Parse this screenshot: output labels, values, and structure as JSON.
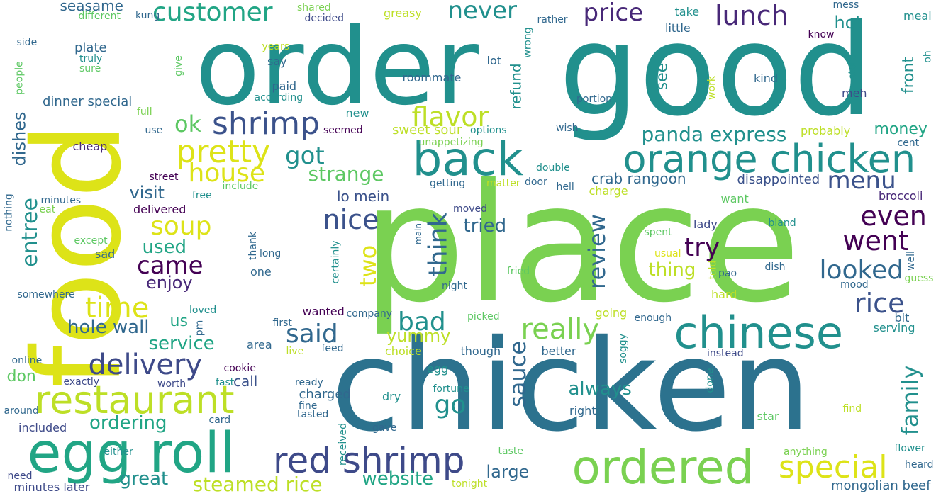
{
  "palette": {
    "dark_purple": "#440154",
    "indigo": "#3b528b",
    "blue": "#2c728e",
    "teal": "#21908d",
    "green": "#5dc863",
    "lime": "#7ad151",
    "yellow": "#dde318"
  },
  "words": [
    {
      "text": "place",
      "fs": 230,
      "color": "#7ad151"
    },
    {
      "text": "chicken",
      "fs": 178,
      "color": "#2c728e"
    },
    {
      "text": "good",
      "fs": 178,
      "color": "#21908d"
    },
    {
      "text": "order",
      "fs": 150,
      "color": "#21908d"
    },
    {
      "text": "food",
      "fs": 170,
      "color": "#dde318"
    },
    {
      "text": "egg roll",
      "fs": 78,
      "color": "#21a585"
    },
    {
      "text": "ordered",
      "fs": 66,
      "color": "#7ad151"
    },
    {
      "text": "back",
      "fs": 66,
      "color": "#21908d"
    },
    {
      "text": "chinese",
      "fs": 62,
      "color": "#21908d"
    },
    {
      "text": "orange chicken",
      "fs": 54,
      "color": "#21908d"
    },
    {
      "text": "restaurant",
      "fs": 54,
      "color": "#bddf26"
    },
    {
      "text": "red shrimp",
      "fs": 50,
      "color": "#3e4a89"
    },
    {
      "text": "special",
      "fs": 44,
      "color": "#dde318"
    },
    {
      "text": "pretty",
      "fs": 44,
      "color": "#dde318"
    },
    {
      "text": "shrimp",
      "fs": 44,
      "color": "#3b528b"
    },
    {
      "text": "really",
      "fs": 40,
      "color": "#7ad151"
    },
    {
      "text": "time",
      "fs": 40,
      "color": "#dde318"
    },
    {
      "text": "delivery",
      "fs": 40,
      "color": "#3e4a89"
    },
    {
      "text": "customer",
      "fs": 36,
      "color": "#21a585"
    },
    {
      "text": "flavor",
      "fs": 38,
      "color": "#bddf26"
    },
    {
      "text": "lunch",
      "fs": 38,
      "color": "#482878"
    },
    {
      "text": "even",
      "fs": 38,
      "color": "#440154"
    },
    {
      "text": "went",
      "fs": 38,
      "color": "#440154"
    },
    {
      "text": "looked",
      "fs": 36,
      "color": "#31688e"
    },
    {
      "text": "rice",
      "fs": 38,
      "color": "#3b528b"
    },
    {
      "text": "nice",
      "fs": 38,
      "color": "#3b528b"
    },
    {
      "text": "price",
      "fs": 34,
      "color": "#482878"
    },
    {
      "text": "never",
      "fs": 34,
      "color": "#21908d"
    },
    {
      "text": "house",
      "fs": 36,
      "color": "#dde318"
    },
    {
      "text": "soup",
      "fs": 36,
      "color": "#dde318"
    },
    {
      "text": "came",
      "fs": 34,
      "color": "#440154"
    },
    {
      "text": "try",
      "fs": 36,
      "color": "#440154"
    },
    {
      "text": "said",
      "fs": 36,
      "color": "#31688e"
    },
    {
      "text": "bad",
      "fs": 36,
      "color": "#21908d"
    },
    {
      "text": "go",
      "fs": 36,
      "color": "#21908d"
    },
    {
      "text": "menu",
      "fs": 34,
      "color": "#3b528b"
    },
    {
      "text": "got",
      "fs": 34,
      "color": "#21908d"
    },
    {
      "text": "ok",
      "fs": 32,
      "color": "#5dc863"
    },
    {
      "text": "panda express",
      "fs": 28,
      "color": "#21908d"
    },
    {
      "text": "strange",
      "fs": 28,
      "color": "#5dc863"
    },
    {
      "text": "always",
      "fs": 26,
      "color": "#21908d"
    },
    {
      "text": "hole wall",
      "fs": 26,
      "color": "#31688e"
    },
    {
      "text": "great",
      "fs": 26,
      "color": "#21908d"
    },
    {
      "text": "steamed rice",
      "fs": 28,
      "color": "#bddf26"
    },
    {
      "text": "website",
      "fs": 26,
      "color": "#21a585"
    },
    {
      "text": "large",
      "fs": 24,
      "color": "#31688e"
    },
    {
      "text": "enjoy",
      "fs": 24,
      "color": "#482878"
    },
    {
      "text": "used",
      "fs": 26,
      "color": "#21a585"
    },
    {
      "text": "visit",
      "fs": 24,
      "color": "#31688e"
    },
    {
      "text": "tried",
      "fs": 26,
      "color": "#31688e"
    },
    {
      "text": "service",
      "fs": 26,
      "color": "#21a585"
    },
    {
      "text": "yummy",
      "fs": 24,
      "color": "#bddf26"
    },
    {
      "text": "ordering",
      "fs": 26,
      "color": "#21a585"
    },
    {
      "text": "thing",
      "fs": 26,
      "color": "#bddf26"
    },
    {
      "text": "mongolian beef",
      "fs": 18,
      "color": "#31688e"
    },
    {
      "text": "money",
      "fs": 22,
      "color": "#21a585"
    },
    {
      "text": "hot",
      "fs": 24,
      "color": "#21908d"
    },
    {
      "text": "seasame",
      "fs": 20,
      "color": "#31688e"
    },
    {
      "text": "us",
      "fs": 22,
      "color": "#21a585"
    },
    {
      "text": "don",
      "fs": 22,
      "color": "#5dc863"
    },
    {
      "text": "crab rangoon",
      "fs": 20,
      "color": "#31688e"
    },
    {
      "text": "disappointed",
      "fs": 18,
      "color": "#3b528b"
    },
    {
      "text": "lo mein",
      "fs": 20,
      "color": "#3b528b"
    },
    {
      "text": "sweet sour",
      "fs": 18,
      "color": "#bddf26"
    },
    {
      "text": "dinner special",
      "fs": 18,
      "color": "#31688e"
    },
    {
      "text": "plate",
      "fs": 18,
      "color": "#31688e"
    },
    {
      "text": "broccoli",
      "fs": 16,
      "color": "#482878"
    },
    {
      "text": "call",
      "fs": 20,
      "color": "#3b528b"
    },
    {
      "text": "charged",
      "fs": 18,
      "color": "#31688e"
    },
    {
      "text": "delivered",
      "fs": 16,
      "color": "#440154"
    },
    {
      "text": "cheap",
      "fs": 16,
      "color": "#482878"
    },
    {
      "text": "roommate",
      "fs": 16,
      "color": "#31688e"
    },
    {
      "text": "lot",
      "fs": 16,
      "color": "#31688e"
    },
    {
      "text": "say",
      "fs": 16,
      "color": "#31688e"
    },
    {
      "text": "paid",
      "fs": 16,
      "color": "#31688e"
    },
    {
      "text": "new",
      "fs": 16,
      "color": "#21908d"
    },
    {
      "text": "take",
      "fs": 16,
      "color": "#21908d"
    },
    {
      "text": "little",
      "fs": 16,
      "color": "#31688e"
    },
    {
      "text": "kind",
      "fs": 16,
      "color": "#31688e"
    },
    {
      "text": "meh",
      "fs": 16,
      "color": "#3e4a89"
    },
    {
      "text": "want",
      "fs": 16,
      "color": "#5dc863"
    },
    {
      "text": "lady",
      "fs": 16,
      "color": "#3e4a89"
    },
    {
      "text": "meal",
      "fs": 16,
      "color": "#21908d"
    },
    {
      "text": "greasy",
      "fs": 16,
      "color": "#bddf26"
    },
    {
      "text": "decided",
      "fs": 14,
      "color": "#3e4a89"
    },
    {
      "text": "probably",
      "fs": 16,
      "color": "#bddf26"
    },
    {
      "text": "options",
      "fs": 14,
      "color": "#21908d"
    },
    {
      "text": "seemed",
      "fs": 14,
      "color": "#440154"
    },
    {
      "text": "unappetizing",
      "fs": 14,
      "color": "#7ad151"
    },
    {
      "text": "getting",
      "fs": 14,
      "color": "#31688e"
    },
    {
      "text": "matter",
      "fs": 14,
      "color": "#bddf26"
    },
    {
      "text": "charge",
      "fs": 16,
      "color": "#bddf26"
    },
    {
      "text": "double",
      "fs": 14,
      "color": "#21908d"
    },
    {
      "text": "door",
      "fs": 14,
      "color": "#31688e"
    },
    {
      "text": "hell",
      "fs": 14,
      "color": "#31688e"
    },
    {
      "text": "wish",
      "fs": 14,
      "color": "#31688e"
    },
    {
      "text": "portion",
      "fs": 14,
      "color": "#31688e"
    },
    {
      "text": "cent",
      "fs": 14,
      "color": "#31688e"
    },
    {
      "text": "bland",
      "fs": 14,
      "color": "#21908d"
    },
    {
      "text": "spent",
      "fs": 14,
      "color": "#5dc863"
    },
    {
      "text": "usual",
      "fs": 14,
      "color": "#dde318"
    },
    {
      "text": "fried",
      "fs": 14,
      "color": "#5dc863"
    },
    {
      "text": "pao",
      "fs": 14,
      "color": "#31688e"
    },
    {
      "text": "dish",
      "fs": 14,
      "color": "#31688e"
    },
    {
      "text": "night",
      "fs": 14,
      "color": "#31688e"
    },
    {
      "text": "hard",
      "fs": 16,
      "color": "#bddf26"
    },
    {
      "text": "mood",
      "fs": 14,
      "color": "#31688e"
    },
    {
      "text": "guess",
      "fs": 14,
      "color": "#7ad151"
    },
    {
      "text": "going",
      "fs": 16,
      "color": "#bddf26"
    },
    {
      "text": "enough",
      "fs": 14,
      "color": "#31688e"
    },
    {
      "text": "bit",
      "fs": 16,
      "color": "#31688e"
    },
    {
      "text": "serving",
      "fs": 16,
      "color": "#21908d"
    },
    {
      "text": "picked",
      "fs": 14,
      "color": "#5dc863"
    },
    {
      "text": "though",
      "fs": 16,
      "color": "#31688e"
    },
    {
      "text": "better",
      "fs": 16,
      "color": "#31688e"
    },
    {
      "text": "instead",
      "fs": 14,
      "color": "#3e4a89"
    },
    {
      "text": "choice",
      "fs": 16,
      "color": "#bddf26"
    },
    {
      "text": "egg",
      "fs": 16,
      "color": "#21908d"
    },
    {
      "text": "fortune",
      "fs": 14,
      "color": "#21908d"
    },
    {
      "text": "dry",
      "fs": 16,
      "color": "#21908d"
    },
    {
      "text": "right",
      "fs": 16,
      "color": "#31688e"
    },
    {
      "text": "star",
      "fs": 16,
      "color": "#5dc863"
    },
    {
      "text": "find",
      "fs": 14,
      "color": "#bddf26"
    },
    {
      "text": "gave",
      "fs": 14,
      "color": "#31688e"
    },
    {
      "text": "taste",
      "fs": 14,
      "color": "#5dc863"
    },
    {
      "text": "anything",
      "fs": 14,
      "color": "#7ad151"
    },
    {
      "text": "flower",
      "fs": 14,
      "color": "#21908d"
    },
    {
      "text": "heard",
      "fs": 14,
      "color": "#31688e"
    },
    {
      "text": "tonight",
      "fs": 14,
      "color": "#bddf26"
    },
    {
      "text": "received",
      "fs": 14,
      "color": "#21908d"
    },
    {
      "text": "ready",
      "fs": 14,
      "color": "#31688e"
    },
    {
      "text": "fine",
      "fs": 14,
      "color": "#31688e"
    },
    {
      "text": "tasted",
      "fs": 14,
      "color": "#31688e"
    },
    {
      "text": "card",
      "fs": 14,
      "color": "#31688e"
    },
    {
      "text": "fast",
      "fs": 14,
      "color": "#21908d"
    },
    {
      "text": "cookie",
      "fs": 14,
      "color": "#440154"
    },
    {
      "text": "worth",
      "fs": 14,
      "color": "#3e4a89"
    },
    {
      "text": "exactly",
      "fs": 14,
      "color": "#3e4a89"
    },
    {
      "text": "feed",
      "fs": 14,
      "color": "#31688e"
    },
    {
      "text": "live",
      "fs": 14,
      "color": "#bddf26"
    },
    {
      "text": "area",
      "fs": 16,
      "color": "#31688e"
    },
    {
      "text": "first",
      "fs": 14,
      "color": "#31688e"
    },
    {
      "text": "company",
      "fs": 14,
      "color": "#31688e"
    },
    {
      "text": "wanted",
      "fs": 16,
      "color": "#440154"
    },
    {
      "text": "one",
      "fs": 16,
      "color": "#31688e"
    },
    {
      "text": "long",
      "fs": 14,
      "color": "#31688e"
    },
    {
      "text": "street",
      "fs": 14,
      "color": "#440154"
    },
    {
      "text": "free",
      "fs": 14,
      "color": "#21908d"
    },
    {
      "text": "include",
      "fs": 14,
      "color": "#5dc863"
    },
    {
      "text": "eat",
      "fs": 14,
      "color": "#7ad151"
    },
    {
      "text": "minutes",
      "fs": 14,
      "color": "#31688e"
    },
    {
      "text": "use",
      "fs": 14,
      "color": "#31688e"
    },
    {
      "text": "full",
      "fs": 14,
      "color": "#7ad151"
    },
    {
      "text": "according",
      "fs": 14,
      "color": "#21908d"
    },
    {
      "text": "years",
      "fs": 14,
      "color": "#bddf26"
    },
    {
      "text": "truly",
      "fs": 14,
      "color": "#21908d"
    },
    {
      "text": "sure",
      "fs": 14,
      "color": "#5dc863"
    },
    {
      "text": "side",
      "fs": 14,
      "color": "#31688e"
    },
    {
      "text": "different",
      "fs": 14,
      "color": "#5dc863"
    },
    {
      "text": "kung",
      "fs": 14,
      "color": "#31688e"
    },
    {
      "text": "shared",
      "fs": 14,
      "color": "#7ad151"
    },
    {
      "text": "rather",
      "fs": 14,
      "color": "#31688e"
    },
    {
      "text": "mess",
      "fs": 14,
      "color": "#31688e"
    },
    {
      "text": "know",
      "fs": 14,
      "color": "#440154"
    },
    {
      "text": "except",
      "fs": 14,
      "color": "#5dc863"
    },
    {
      "text": "sad",
      "fs": 16,
      "color": "#31688e"
    },
    {
      "text": "loved",
      "fs": 14,
      "color": "#21908d"
    },
    {
      "text": "somewhere",
      "fs": 14,
      "color": "#31688e"
    },
    {
      "text": "online",
      "fs": 14,
      "color": "#31688e"
    },
    {
      "text": "around",
      "fs": 14,
      "color": "#31688e"
    },
    {
      "text": "included",
      "fs": 16,
      "color": "#3e4a89"
    },
    {
      "text": "either",
      "fs": 14,
      "color": "#21908d"
    },
    {
      "text": "need",
      "fs": 14,
      "color": "#3e4a89"
    },
    {
      "text": "minutes later",
      "fs": 16,
      "color": "#3e4a89"
    },
    {
      "text": "moved",
      "fs": 14,
      "color": "#3e4a89"
    },
    {
      "text": "sauce",
      "fs": 32,
      "color": "#31688e"
    },
    {
      "text": "think",
      "fs": 36,
      "color": "#31688e"
    },
    {
      "text": "review",
      "fs": 32,
      "color": "#31688e"
    },
    {
      "text": "family",
      "fs": 32,
      "color": "#21908d"
    },
    {
      "text": "two",
      "fs": 32,
      "color": "#dde318"
    },
    {
      "text": "entree",
      "fs": 30,
      "color": "#21908d"
    },
    {
      "text": "dishes",
      "fs": 24,
      "color": "#31688e"
    },
    {
      "text": "refund",
      "fs": 20,
      "color": "#21908d"
    },
    {
      "text": "see",
      "fs": 22,
      "color": "#21908d"
    },
    {
      "text": "front",
      "fs": 22,
      "color": "#21908d"
    },
    {
      "text": "wrong",
      "fs": 14,
      "color": "#21908d"
    },
    {
      "text": "give",
      "fs": 14,
      "color": "#5dc863"
    },
    {
      "text": "people",
      "fs": 14,
      "color": "#5dc863"
    },
    {
      "text": "nothing",
      "fs": 14,
      "color": "#31688e"
    },
    {
      "text": "thank",
      "fs": 14,
      "color": "#31688e"
    },
    {
      "text": "certainly",
      "fs": 14,
      "color": "#21908d"
    },
    {
      "text": "pm",
      "fs": 14,
      "color": "#31688e"
    },
    {
      "text": "soggy",
      "fs": 14,
      "color": "#21908d"
    },
    {
      "text": "done",
      "fs": 14,
      "color": "#21908d"
    },
    {
      "text": "told",
      "fs": 14,
      "color": "#bddf26"
    },
    {
      "text": "well",
      "fs": 14,
      "color": "#31688e"
    },
    {
      "text": "work",
      "fs": 14,
      "color": "#bddf26"
    },
    {
      "text": "store",
      "fs": 14,
      "color": "#21908d"
    },
    {
      "text": "oh",
      "fs": 14,
      "color": "#21908d"
    },
    {
      "text": "main",
      "fs": 12,
      "color": "#31688e"
    }
  ]
}
